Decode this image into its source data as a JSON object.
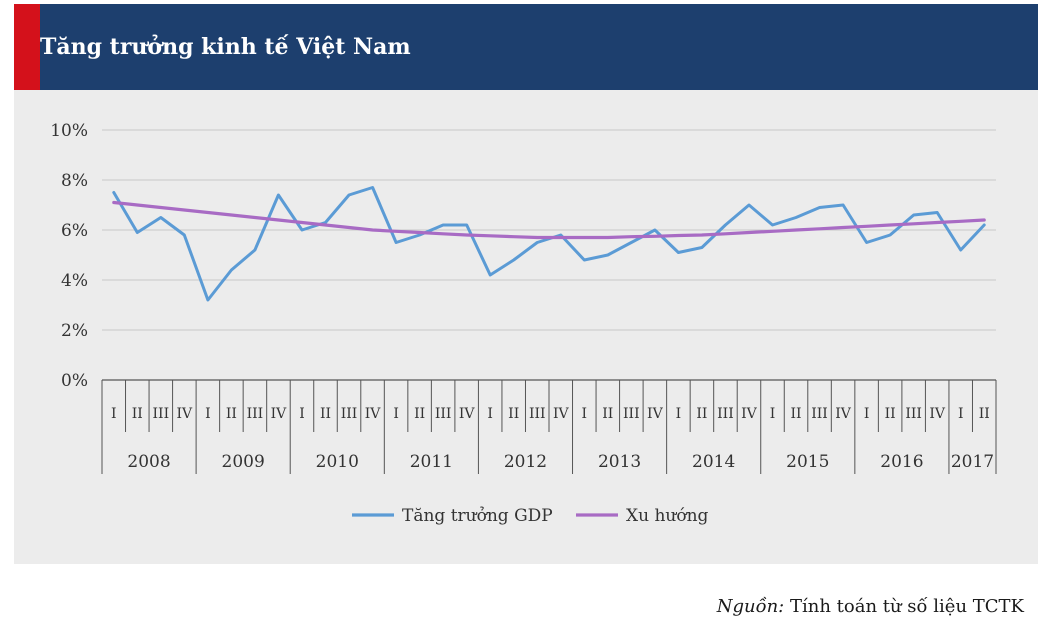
{
  "header": {
    "title": "Tăng trưởng kinh tế Việt Nam"
  },
  "source": {
    "prefix": "Nguồn:",
    "text": " Tính toán từ số liệu TCTK"
  },
  "colors": {
    "header": "#1d3f6e",
    "accent": "#d4111b",
    "gdp": "#5b9bd5",
    "trend": "#a86bc4"
  },
  "chart_data": {
    "type": "line",
    "title": "Tăng trưởng kinh tế Việt Nam",
    "ylim": [
      0,
      10
    ],
    "yticks": [
      0,
      2,
      4,
      6,
      8,
      10
    ],
    "ytick_labels": [
      "0%",
      "2%",
      "4%",
      "6%",
      "8%",
      "10%"
    ],
    "quarters": [
      "I",
      "II",
      "III",
      "IV",
      "I",
      "II",
      "III",
      "IV",
      "I",
      "II",
      "III",
      "IV",
      "I",
      "II",
      "III",
      "IV",
      "I",
      "II",
      "III",
      "IV",
      "I",
      "II",
      "III",
      "IV",
      "I",
      "II",
      "III",
      "IV",
      "I",
      "II",
      "III",
      "IV",
      "I",
      "II",
      "III",
      "IV",
      "I",
      "II"
    ],
    "years": [
      {
        "label": "2008",
        "count": 4
      },
      {
        "label": "2009",
        "count": 4
      },
      {
        "label": "2010",
        "count": 4
      },
      {
        "label": "2011",
        "count": 4
      },
      {
        "label": "2012",
        "count": 4
      },
      {
        "label": "2013",
        "count": 4
      },
      {
        "label": "2014",
        "count": 4
      },
      {
        "label": "2015",
        "count": 4
      },
      {
        "label": "2016",
        "count": 4
      },
      {
        "label": "2017",
        "count": 2
      }
    ],
    "series": [
      {
        "name": "Tăng trưởng GDP",
        "values": [
          7.5,
          5.9,
          6.5,
          5.8,
          3.2,
          4.4,
          5.2,
          7.4,
          6.0,
          6.3,
          7.4,
          7.7,
          5.5,
          5.8,
          6.2,
          6.2,
          4.2,
          4.8,
          5.5,
          5.8,
          4.8,
          5.0,
          5.5,
          6.0,
          5.1,
          5.3,
          6.2,
          7.0,
          6.2,
          6.5,
          6.9,
          7.0,
          5.5,
          5.8,
          6.6,
          6.7,
          5.2,
          6.2
        ]
      },
      {
        "name": "Xu hướng",
        "values": [
          7.1,
          7.0,
          6.9,
          6.8,
          6.7,
          6.6,
          6.5,
          6.4,
          6.3,
          6.2,
          6.1,
          6.0,
          5.95,
          5.9,
          5.85,
          5.8,
          5.77,
          5.73,
          5.7,
          5.7,
          5.7,
          5.7,
          5.73,
          5.75,
          5.78,
          5.8,
          5.85,
          5.9,
          5.95,
          6.0,
          6.05,
          6.1,
          6.15,
          6.2,
          6.25,
          6.3,
          6.35,
          6.4
        ]
      }
    ],
    "legend": [
      "Tăng trưởng GDP",
      "Xu hướng"
    ],
    "legend_position": "bottom"
  }
}
